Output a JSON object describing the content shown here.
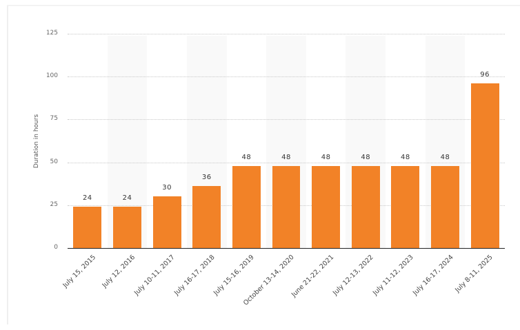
{
  "chart_data": {
    "type": "bar",
    "title": "",
    "xlabel": "",
    "ylabel": "Duration in hours",
    "ylim": [
      0,
      125
    ],
    "yticks": [
      0,
      25,
      50,
      75,
      100,
      125
    ],
    "grid": true,
    "legend": null,
    "bar_color": "#f28227",
    "categories": [
      "July 15, 2015",
      "July 12, 2016",
      "July 10-11, 2017",
      "July 16-17, 2018",
      "July 15-16, 2019",
      "October 13-14, 2020",
      "June 21-22, 2021",
      "July 12-13, 2022",
      "July 11-12, 2023",
      "July 16-17, 2024",
      "July 8-11, 2025"
    ],
    "values": [
      24,
      24,
      30,
      36,
      48,
      48,
      48,
      48,
      48,
      48,
      96
    ]
  }
}
